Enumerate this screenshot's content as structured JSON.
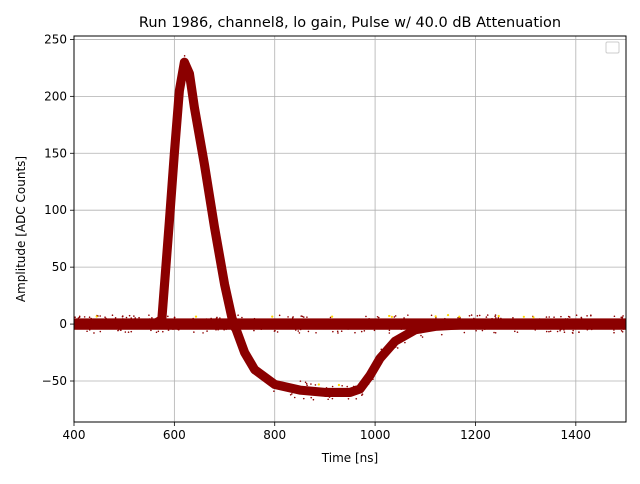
{
  "chart_data": {
    "type": "scatter",
    "title": "Run 1986, channel8, lo gain, Pulse w/ 40.0 dB Attenuation",
    "xlabel": "Time [ns]",
    "ylabel": "Amplitude [ADC Counts]",
    "xlim": [
      400,
      1500
    ],
    "ylim": [
      -86,
      253
    ],
    "x_ticks": [
      400,
      600,
      800,
      1000,
      1200,
      1400
    ],
    "x_tick_labels": [
      "400",
      "600",
      "800",
      "1000",
      "1200",
      "1400"
    ],
    "y_ticks": [
      -50,
      0,
      50,
      100,
      150,
      200,
      250
    ],
    "y_tick_labels": [
      "−50",
      "0",
      "50",
      "100",
      "150",
      "200",
      "250"
    ],
    "grid": true,
    "legend": "top-right (empty)",
    "marker_color": "#8b0000",
    "highlight_color": "#ffd700",
    "series": [
      {
        "style": "baseline noise band",
        "x": [
          400,
          1500
        ],
        "y_center": 0,
        "y_halfwidth": 5
      },
      {
        "style": "pulse waveform band",
        "x": [
          400,
          560,
          575,
          590,
          600,
          610,
          620,
          630,
          640,
          660,
          680,
          700,
          715,
          740,
          760,
          800,
          850,
          900,
          950,
          970,
          990,
          1010,
          1040,
          1080,
          1120,
          1160,
          1200,
          1500
        ],
        "y": [
          0,
          0,
          4,
          90,
          150,
          205,
          230,
          220,
          190,
          140,
          85,
          35,
          5,
          -25,
          -40,
          -53,
          -58,
          -60,
          -60,
          -57,
          -45,
          -30,
          -15,
          -5,
          -2,
          -1,
          0,
          0
        ],
        "y_halfwidth": 4
      }
    ]
  }
}
